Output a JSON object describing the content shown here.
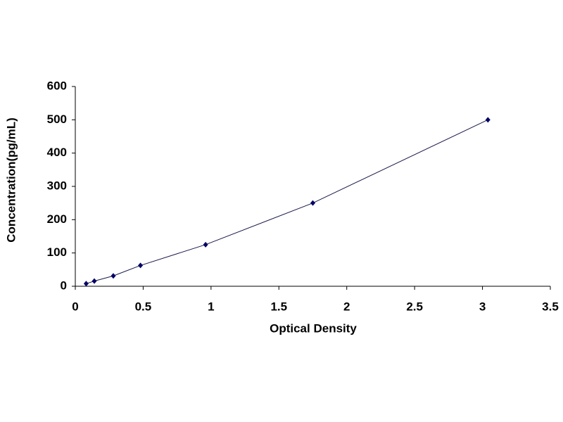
{
  "chart_data": {
    "type": "scatter",
    "x_label": "Optical Density",
    "y_label": "Concentration(pg/mL)",
    "x": [
      0.08,
      0.14,
      0.28,
      0.48,
      0.96,
      1.75,
      3.04
    ],
    "series": [
      {
        "color": "#000066",
        "values": [
          7.8,
          15.6,
          31.2,
          62.5,
          125,
          250,
          500
        ]
      }
    ],
    "line": true,
    "xlim": [
      0,
      3.5
    ],
    "xticks": [
      0,
      0.5,
      1,
      1.5,
      2,
      2.5,
      3,
      3.5
    ],
    "ylim": [
      0,
      600
    ],
    "yticks": [
      0,
      100,
      200,
      300,
      400,
      500,
      600
    ],
    "grid": false
  }
}
